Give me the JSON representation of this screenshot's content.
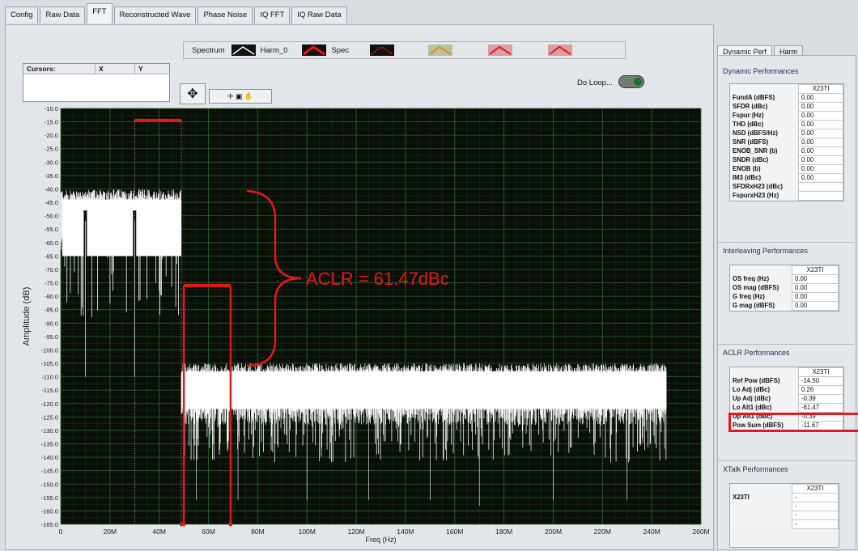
{
  "tabs": [
    {
      "label": "Config",
      "active": false
    },
    {
      "label": "Raw Data",
      "active": false
    },
    {
      "label": "FFT",
      "active": true
    },
    {
      "label": "Reconstructed Wave",
      "active": false
    },
    {
      "label": "Phase Noise",
      "active": false
    },
    {
      "label": "IQ FFT",
      "active": false
    },
    {
      "label": "IQ Raw Data",
      "active": false
    }
  ],
  "legend": {
    "spectrum_label": "Spectrum",
    "harm0_label": "Harm_0",
    "spec_label": "Spec"
  },
  "cursors": {
    "title": "Cursors:",
    "x": "X",
    "y": "Y"
  },
  "do_loop_label": "Do Loop...",
  "annotation": {
    "text": "ACLR = 61.47dBc",
    "color": "#e5191b"
  },
  "chart_data": {
    "type": "line",
    "xlabel": "Freq (Hz)",
    "ylabel": "Amplitude (dB)",
    "xlim": [
      0,
      260000000
    ],
    "ylim": [
      -165,
      -10
    ],
    "x_ticks": [
      "0",
      "20M",
      "40M",
      "60M",
      "80M",
      "100M",
      "120M",
      "140M",
      "160M",
      "180M",
      "200M",
      "220M",
      "240M",
      "260M"
    ],
    "y_ticks": [
      "-10.0",
      "-15.0",
      "-20.0",
      "-25.0",
      "-30.0",
      "-35.0",
      "-40.0",
      "-45.0",
      "-50.0",
      "-55.0",
      "-60.0",
      "-65.0",
      "-70.0",
      "-75.0",
      "-80.0",
      "-85.0",
      "-90.0",
      "-95.0",
      "-100.0",
      "-105.0",
      "-110.0",
      "-115.0",
      "-120.0",
      "-125.0",
      "-130.0",
      "-135.0",
      "-140.0",
      "-145.0",
      "-150.0",
      "-155.0",
      "-160.0",
      "-165.0"
    ],
    "spectrum": {
      "carrier_band": [
        0,
        49000000
      ],
      "carrier_top": -44,
      "carrier_bottom": -65,
      "notches": [
        10000000,
        30000000
      ],
      "noise_band": [
        49000000,
        246000000
      ],
      "noise_top": -107,
      "noise_bottom": -128,
      "color": "#ffffff"
    },
    "aclr_markers": {
      "ref_level": -14.5,
      "ref_band": [
        30000000,
        49000000
      ],
      "adj_level": -76,
      "adj_band": [
        50000000,
        69000000
      ],
      "color": "#e5191b"
    },
    "background": "#0a0f0a",
    "grid": true,
    "grid_color": "#2c6a2c"
  },
  "right": {
    "tabs": [
      {
        "label": "Dynamic Perf",
        "active": true
      },
      {
        "label": "Harm",
        "active": false
      }
    ],
    "dynamic": {
      "title": "Dynamic Performances",
      "col": "X23TI",
      "rows": [
        {
          "label": "FundA (dBFS)",
          "value": "0.00"
        },
        {
          "label": "SFDR (dBc)",
          "value": "0.00"
        },
        {
          "label": "Fspur (Hz)",
          "value": "0.00"
        },
        {
          "label": "THD (dBc)",
          "value": "0.00"
        },
        {
          "label": "NSD (dBFS/Hz)",
          "value": "0.00"
        },
        {
          "label": "SNR (dBFS)",
          "value": "0.00"
        },
        {
          "label": "ENOB_SNR (b)",
          "value": "0.00"
        },
        {
          "label": "SNDR (dBc)",
          "value": "0.00"
        },
        {
          "label": "ENOB (b)",
          "value": "0.00"
        },
        {
          "label": "IM3 (dBc)",
          "value": "0.00"
        },
        {
          "label": "SFDRxH23 (dBc)",
          "value": ""
        },
        {
          "label": "FspurxH23 (Hz)",
          "value": ""
        }
      ]
    },
    "interleaving": {
      "title": "Interleaving Performances",
      "col": "X23TI",
      "rows": [
        {
          "label": "OS freq (Hz)",
          "value": "0.00"
        },
        {
          "label": "OS mag (dBFS)",
          "value": "0.00"
        },
        {
          "label": "G freq (Hz)",
          "value": "0.00"
        },
        {
          "label": "G mag (dBFS)",
          "value": "0.00"
        }
      ]
    },
    "aclr": {
      "title": "ACLR Performances",
      "col": "X23TI",
      "rows": [
        {
          "label": "Ref Pow (dBFS)",
          "value": "-14.50"
        },
        {
          "label": "Lo Adj  (dBc)",
          "value": "0.26"
        },
        {
          "label": "Up Adj  (dBc)",
          "value": "-0.39"
        },
        {
          "label": "Lo Alt1 (dBc)",
          "value": "-61.47"
        },
        {
          "label": "Up Alt1 (dBc)",
          "value": "-0.39"
        },
        {
          "label": "Pow Sum (dBFS)",
          "value": "-11.67"
        }
      ]
    },
    "xtalk": {
      "title": "XTalk Performances",
      "col": "X23TI",
      "rows": [
        {
          "label": "X23TI",
          "value": "-"
        },
        {
          "label": "",
          "value": "-"
        },
        {
          "label": "",
          "value": "-"
        },
        {
          "label": "",
          "value": "-"
        }
      ]
    }
  }
}
